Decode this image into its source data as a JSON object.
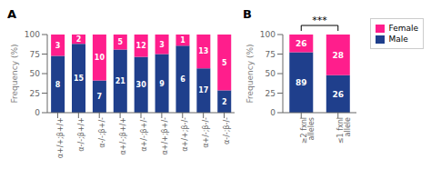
{
  "chart_data": [
    {
      "type": "bar",
      "title": "A",
      "ylabel": "Frequency (%)",
      "stacked": true,
      "categories": [
        "α+/+;β+/+",
        "α-/-;β+/+",
        "α-/-;β+/-",
        "α+/-;β+/+",
        "α+/-;β+/-",
        "α+/+;β+/-",
        "α+/+;β-/-",
        "α+/-;β-/-",
        "α-/-;β-/-"
      ],
      "series": [
        {
          "name": "Male",
          "color": "#1F3F8C",
          "values": [
            72.7,
            88.2,
            41.2,
            80.8,
            71.4,
            75.0,
            85.7,
            56.7,
            28.6
          ],
          "counts": [
            8,
            15,
            7,
            21,
            30,
            9,
            6,
            17,
            2
          ]
        },
        {
          "name": "Female",
          "color": "#FF1E8C",
          "values": [
            27.3,
            11.8,
            58.8,
            19.2,
            28.6,
            25.0,
            14.3,
            43.3,
            71.4
          ],
          "counts": [
            3,
            2,
            10,
            5,
            12,
            3,
            1,
            13,
            5
          ]
        }
      ],
      "ylim": [
        0,
        100
      ],
      "yticks": [
        0,
        25,
        50,
        75,
        100
      ]
    },
    {
      "type": "bar",
      "title": "B",
      "ylabel": "Frequency (%)",
      "stacked": true,
      "categories": [
        "≥2 fxnl alleles",
        "≤1 fxnl allele"
      ],
      "series": [
        {
          "name": "Male",
          "color": "#1F3F8C",
          "values": [
            77.4,
            48.1
          ],
          "counts": [
            89,
            26
          ]
        },
        {
          "name": "Female",
          "color": "#FF1E8C",
          "values": [
            22.6,
            51.9
          ],
          "counts": [
            26,
            28
          ]
        }
      ],
      "ylim": [
        0,
        100
      ],
      "yticks": [
        0,
        25,
        50,
        75,
        100
      ],
      "annotations": [
        {
          "text": "***"
        }
      ],
      "legend": "upper right"
    }
  ]
}
